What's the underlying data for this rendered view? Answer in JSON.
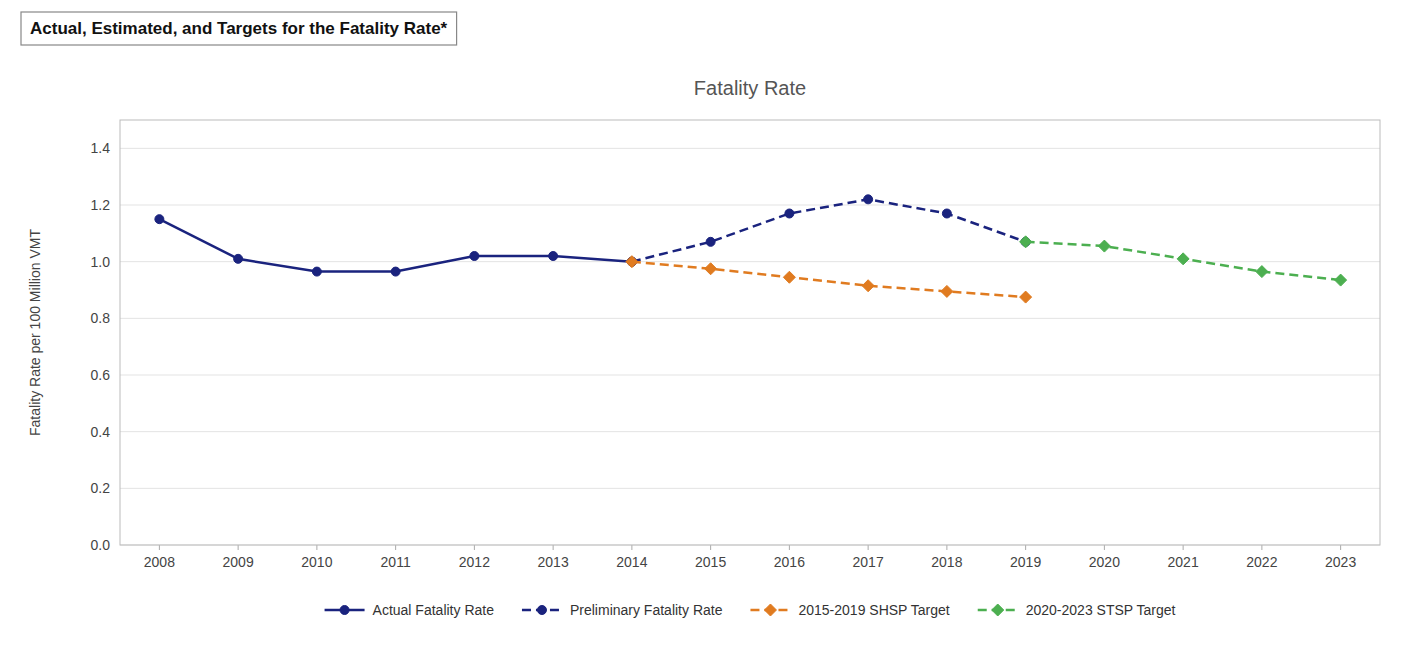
{
  "chart_data": {
    "type": "line",
    "title": "Fatality Rate",
    "subtitle": "Actual, Estimated, and Targets for the Fatality Rate*",
    "y_label": "Fatality Rate per 100 Million VMT",
    "xlim": [
      2007.5,
      2023.5
    ],
    "xticks": [
      2008,
      2009,
      2010,
      2011,
      2012,
      2013,
      2014,
      2015,
      2016,
      2017,
      2018,
      2019,
      2020,
      2021,
      2022,
      2023
    ],
    "ylim": [
      0.0,
      1.5
    ],
    "yticks": [
      {
        "value": 0.0,
        "label": "0.0"
      },
      0.2,
      0.4,
      0.6,
      0.8,
      {
        "value": 1.0,
        "label": "1.0"
      },
      1.2,
      1.4
    ],
    "grid": true,
    "legend": "bottom",
    "series": [
      {
        "name": "Actual Fatality Rate",
        "color": "#1a237e",
        "line_style": "solid",
        "marker": "circle",
        "x": [
          2008,
          2009,
          2010,
          2011,
          2012,
          2013,
          2014
        ],
        "values": [
          1.15,
          1.01,
          0.965,
          0.965,
          1.02,
          1.02,
          1.0
        ]
      },
      {
        "name": "Preliminary Fatality Rate",
        "color": "#1a237e",
        "line_style": "dashed",
        "marker": "circle",
        "x": [
          2014,
          2015,
          2016,
          2017,
          2018,
          2019
        ],
        "values": [
          1.0,
          1.07,
          1.17,
          1.22,
          1.17,
          1.07
        ]
      },
      {
        "name": "2015-2019 SHSP Target",
        "color": "#e07b20",
        "line_style": "dashed",
        "marker": "diamond",
        "x": [
          2014,
          2015,
          2016,
          2017,
          2018,
          2019
        ],
        "values": [
          1.0,
          0.975,
          0.945,
          0.915,
          0.895,
          0.875
        ]
      },
      {
        "name": "2020-2023 STSP Target",
        "color": "#4caf50",
        "line_style": "dashed",
        "marker": "diamond",
        "x": [
          2019,
          2020,
          2021,
          2022,
          2023
        ],
        "values": [
          1.07,
          1.055,
          1.01,
          0.965,
          0.935
        ]
      }
    ]
  }
}
